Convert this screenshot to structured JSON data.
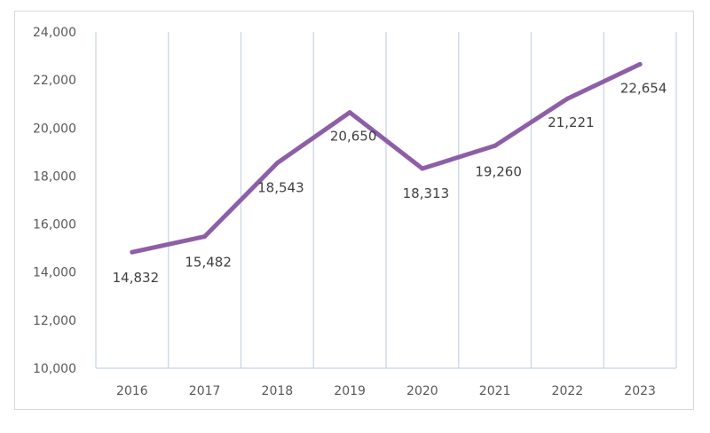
{
  "chart_data": {
    "type": "line",
    "title": "",
    "xlabel": "",
    "ylabel": "",
    "categories": [
      "2016",
      "2017",
      "2018",
      "2019",
      "2020",
      "2021",
      "2022",
      "2023"
    ],
    "series": [
      {
        "values": [
          14832,
          15482,
          18543,
          20650,
          18313,
          19260,
          21221,
          22654
        ],
        "data_labels": [
          "14,832",
          "15,482",
          "18,543",
          "20,650",
          "18,313",
          "19,260",
          "21,221",
          "22,654"
        ],
        "color": "#8e5ea8"
      }
    ],
    "ylim": [
      10000,
      24000
    ],
    "yticks": [
      10000,
      12000,
      14000,
      16000,
      18000,
      20000,
      22000,
      24000
    ],
    "ytick_labels": [
      "10,000",
      "12,000",
      "14,000",
      "16,000",
      "18,000",
      "20,000",
      "22,000",
      "24,000"
    ],
    "grid": {
      "vertical": true,
      "horizontal": false,
      "color": "#c5d3e6"
    },
    "legend": "none"
  }
}
